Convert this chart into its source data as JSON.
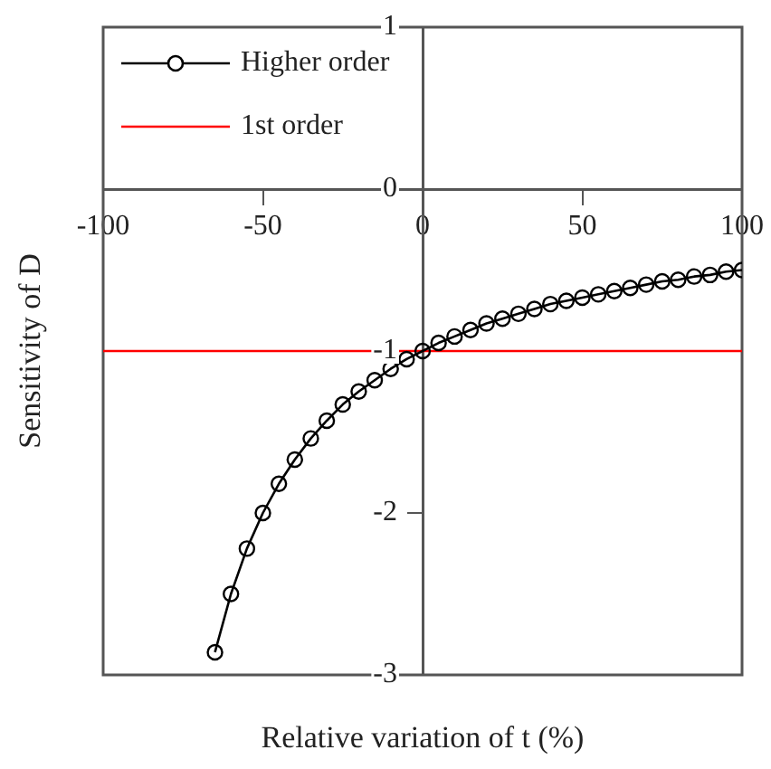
{
  "chart_data": {
    "type": "line",
    "xlabel": "Relative variation of t (%)",
    "ylabel": "Sensitivity of D",
    "xlim": [
      -100,
      100
    ],
    "xticks": [
      -100,
      -50,
      0,
      50,
      100
    ],
    "ylim": [
      -3,
      1
    ],
    "yticks": [
      -3,
      -2,
      -1,
      0,
      1
    ],
    "grid": false,
    "legend": "top left",
    "marker": "circle",
    "series": [
      {
        "name": "Higher order",
        "color": "#000000",
        "x": [
          -65,
          -60,
          -55,
          -50,
          -45,
          -40,
          -35,
          -30,
          -25,
          -20,
          -15,
          -10,
          -5,
          0,
          5,
          10,
          15,
          20,
          25,
          30,
          35,
          40,
          45,
          50,
          55,
          60,
          65,
          70,
          75,
          80,
          85,
          90,
          95,
          100
        ],
        "values": [
          -2.86,
          -2.5,
          -2.22,
          -2.0,
          -1.82,
          -1.67,
          -1.54,
          -1.43,
          -1.33,
          -1.25,
          -1.18,
          -1.11,
          -1.05,
          -1,
          -0.95,
          -0.91,
          -0.87,
          -0.83,
          -0.8,
          -0.77,
          -0.74,
          -0.71,
          -0.69,
          -0.67,
          -0.65,
          -0.63,
          -0.61,
          -0.59,
          -0.57,
          -0.56,
          -0.54,
          -0.53,
          -0.51,
          -0.5
        ]
      },
      {
        "name": "1st order",
        "color": "#ff0000",
        "marker": "none",
        "x": [
          -100,
          100
        ],
        "values": [
          -1,
          -1
        ]
      }
    ]
  }
}
